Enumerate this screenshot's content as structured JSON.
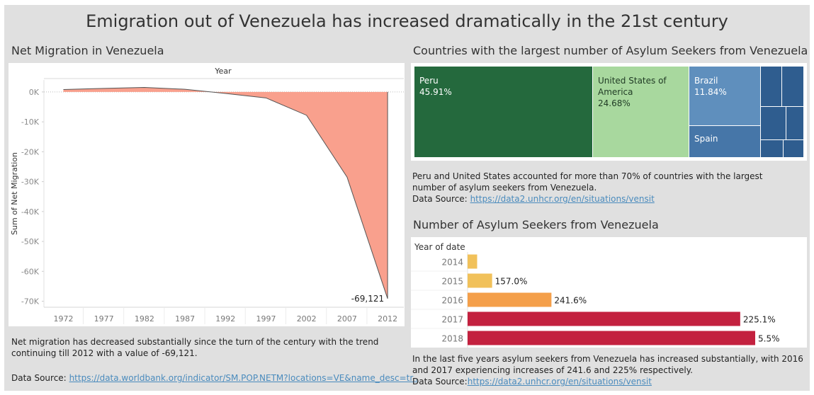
{
  "title": "Emigration out of Venezuela has increased dramatically in the 21st century",
  "colors": {
    "background": "#e0e0e0",
    "area_fill": "#f9a08d",
    "peru": "#24693d",
    "usa": "#a8d89e",
    "brazil": "#5f8fbd",
    "spain": "#4676a8",
    "others": "#2f5d8f",
    "bar_2014": "#f1c15a",
    "bar_2015": "#f1c15a",
    "bar_2016": "#f49f4a",
    "bar_2017": "#c3213f",
    "bar_2018": "#c3213f",
    "link": "#4a8bbd"
  },
  "net_migration": {
    "section_title": "Net Migration in Venezuela",
    "note": "Net migration has decreased substantially since the turn of the century with the trend continuing till 2012 with a value of -69,121.",
    "source_label": "Data Source:",
    "source_link": "https://data.worldbank.org/indicator/SM.POP.NETM?locations=VE&name_desc=tr..",
    "chart_data": {
      "type": "area",
      "title": "",
      "xlabel": "Year",
      "ylabel": "Sum of Net Migration",
      "x": [
        1972,
        1977,
        1982,
        1987,
        1992,
        1997,
        2002,
        2007,
        2012
      ],
      "values": [
        800,
        1200,
        1500,
        900,
        -500,
        -2000,
        -7800,
        -28500,
        -69121
      ],
      "xticks": [
        "1972",
        "1977",
        "1982",
        "1987",
        "1992",
        "1997",
        "2002",
        "2007",
        "2012"
      ],
      "yticks": [
        "0K",
        "-10K",
        "-20K",
        "-30K",
        "-40K",
        "-50K",
        "-60K",
        "-70K"
      ],
      "ytick_values": [
        0,
        -10000,
        -20000,
        -30000,
        -40000,
        -50000,
        -60000,
        -70000
      ],
      "ylim": [
        -72000,
        4000
      ],
      "xlim": [
        1969.6,
        2014
      ],
      "annotation": "-69,121"
    }
  },
  "asylum_countries": {
    "section_title": "Countries with the largest number of Asylum Seekers from Venezuela",
    "note": "Peru and United States accounted for more than 70% of countries with the largest number of asylum seekers from Venezuela.",
    "source_label": "Data Source:",
    "source_link": "https://data2.unhcr.org/en/situations/vensit",
    "chart_data": {
      "type": "treemap",
      "items": [
        {
          "name": "Peru",
          "share": "45.91%"
        },
        {
          "name": "United States of America",
          "share": "24.68%"
        },
        {
          "name": "Brazil",
          "share": "11.84%"
        },
        {
          "name": "Spain",
          "share": ""
        }
      ]
    }
  },
  "asylum_seekers": {
    "section_title": "Number of Asylum Seekers from Venezuela",
    "axis_title": "Year of date",
    "note": "In the last five years asylum seekers from Venezuela has increased substantially, with 2016 and 2017 experiencing increases of 241.6 and 225% respectively.",
    "source_label": "Data Source:",
    "source_link": "https://data2.unhcr.org/en/situations/vensit",
    "chart_data": {
      "type": "bar",
      "orientation": "horizontal",
      "ylabel": "Year of date",
      "categories": [
        "2014",
        "2015",
        "2016",
        "2017",
        "2018"
      ],
      "values": [
        3000,
        7700,
        26300,
        85500,
        90200
      ],
      "labels": [
        "",
        "157.0%",
        "241.6%",
        "225.1%",
        "5.5%"
      ],
      "xlim": [
        0,
        90200
      ]
    }
  }
}
